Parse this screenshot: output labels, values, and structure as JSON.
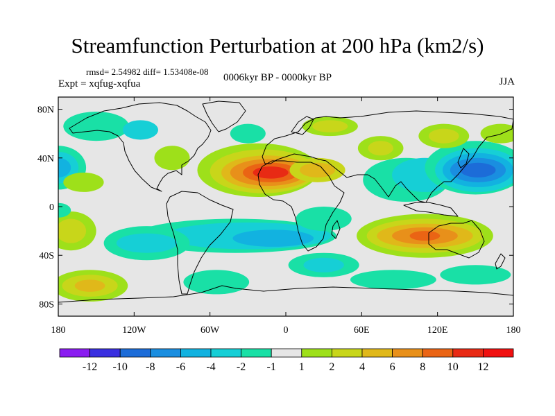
{
  "title": "Streamfunction Perturbation at 200 hPa (km2/s)",
  "stats": "rmsd= 2.54982 diff= 1.53408e-08",
  "experiment": "Expt = xqfug-xqfua",
  "period": "0006kyr BP - 0000kyr BP",
  "season": "JJA",
  "lat_ticks": [
    "80N",
    "40N",
    "0",
    "40S",
    "80S"
  ],
  "lat_values": [
    80,
    40,
    0,
    -40,
    -80
  ],
  "lon_ticks": [
    "180",
    "120W",
    "60W",
    "0",
    "60E",
    "120E",
    "180"
  ],
  "lon_values": [
    -180,
    -120,
    -60,
    0,
    60,
    120,
    180
  ],
  "colorbar": {
    "labels": [
      "-12",
      "-10",
      "-8",
      "-6",
      "-4",
      "-2",
      "-1",
      "1",
      "2",
      "4",
      "6",
      "8",
      "10",
      "12"
    ],
    "colors": [
      "#8a1cf0",
      "#3a2fe0",
      "#1c6cd8",
      "#1a8ee0",
      "#12b2e0",
      "#16cfd6",
      "#19e0a6",
      "#e6e6e6",
      "#9ee01a",
      "#c8d61a",
      "#e0b81a",
      "#e8901a",
      "#ea6414",
      "#e82a14",
      "#f01010"
    ]
  },
  "chart_data": {
    "type": "contour-map",
    "variable": "Streamfunction Perturbation at 200 hPa (km2/s)",
    "projection": "cylindrical equidistant",
    "lon_range": [
      -180,
      180
    ],
    "lat_range": [
      -90,
      90
    ],
    "levels": [
      -12,
      -10,
      -8,
      -6,
      -4,
      -2,
      -1,
      1,
      2,
      4,
      6,
      8,
      10,
      12
    ],
    "features": [
      {
        "name": "north-africa-maximum",
        "lon": -15,
        "lat": 28,
        "value": 10
      },
      {
        "name": "west-pacific-minimum",
        "lon": 152,
        "lat": 30,
        "value": -9
      },
      {
        "name": "east-pacific-minimum",
        "lon": -178,
        "lat": 32,
        "value": -5
      },
      {
        "name": "australia-maximum",
        "lon": 110,
        "lat": -25,
        "value": 7
      },
      {
        "name": "south-atlantic-minimum",
        "lon": -20,
        "lat": -25,
        "value": -4
      },
      {
        "name": "south-pacific-maximum",
        "lon": -155,
        "lat": -65,
        "value": 4
      }
    ]
  }
}
